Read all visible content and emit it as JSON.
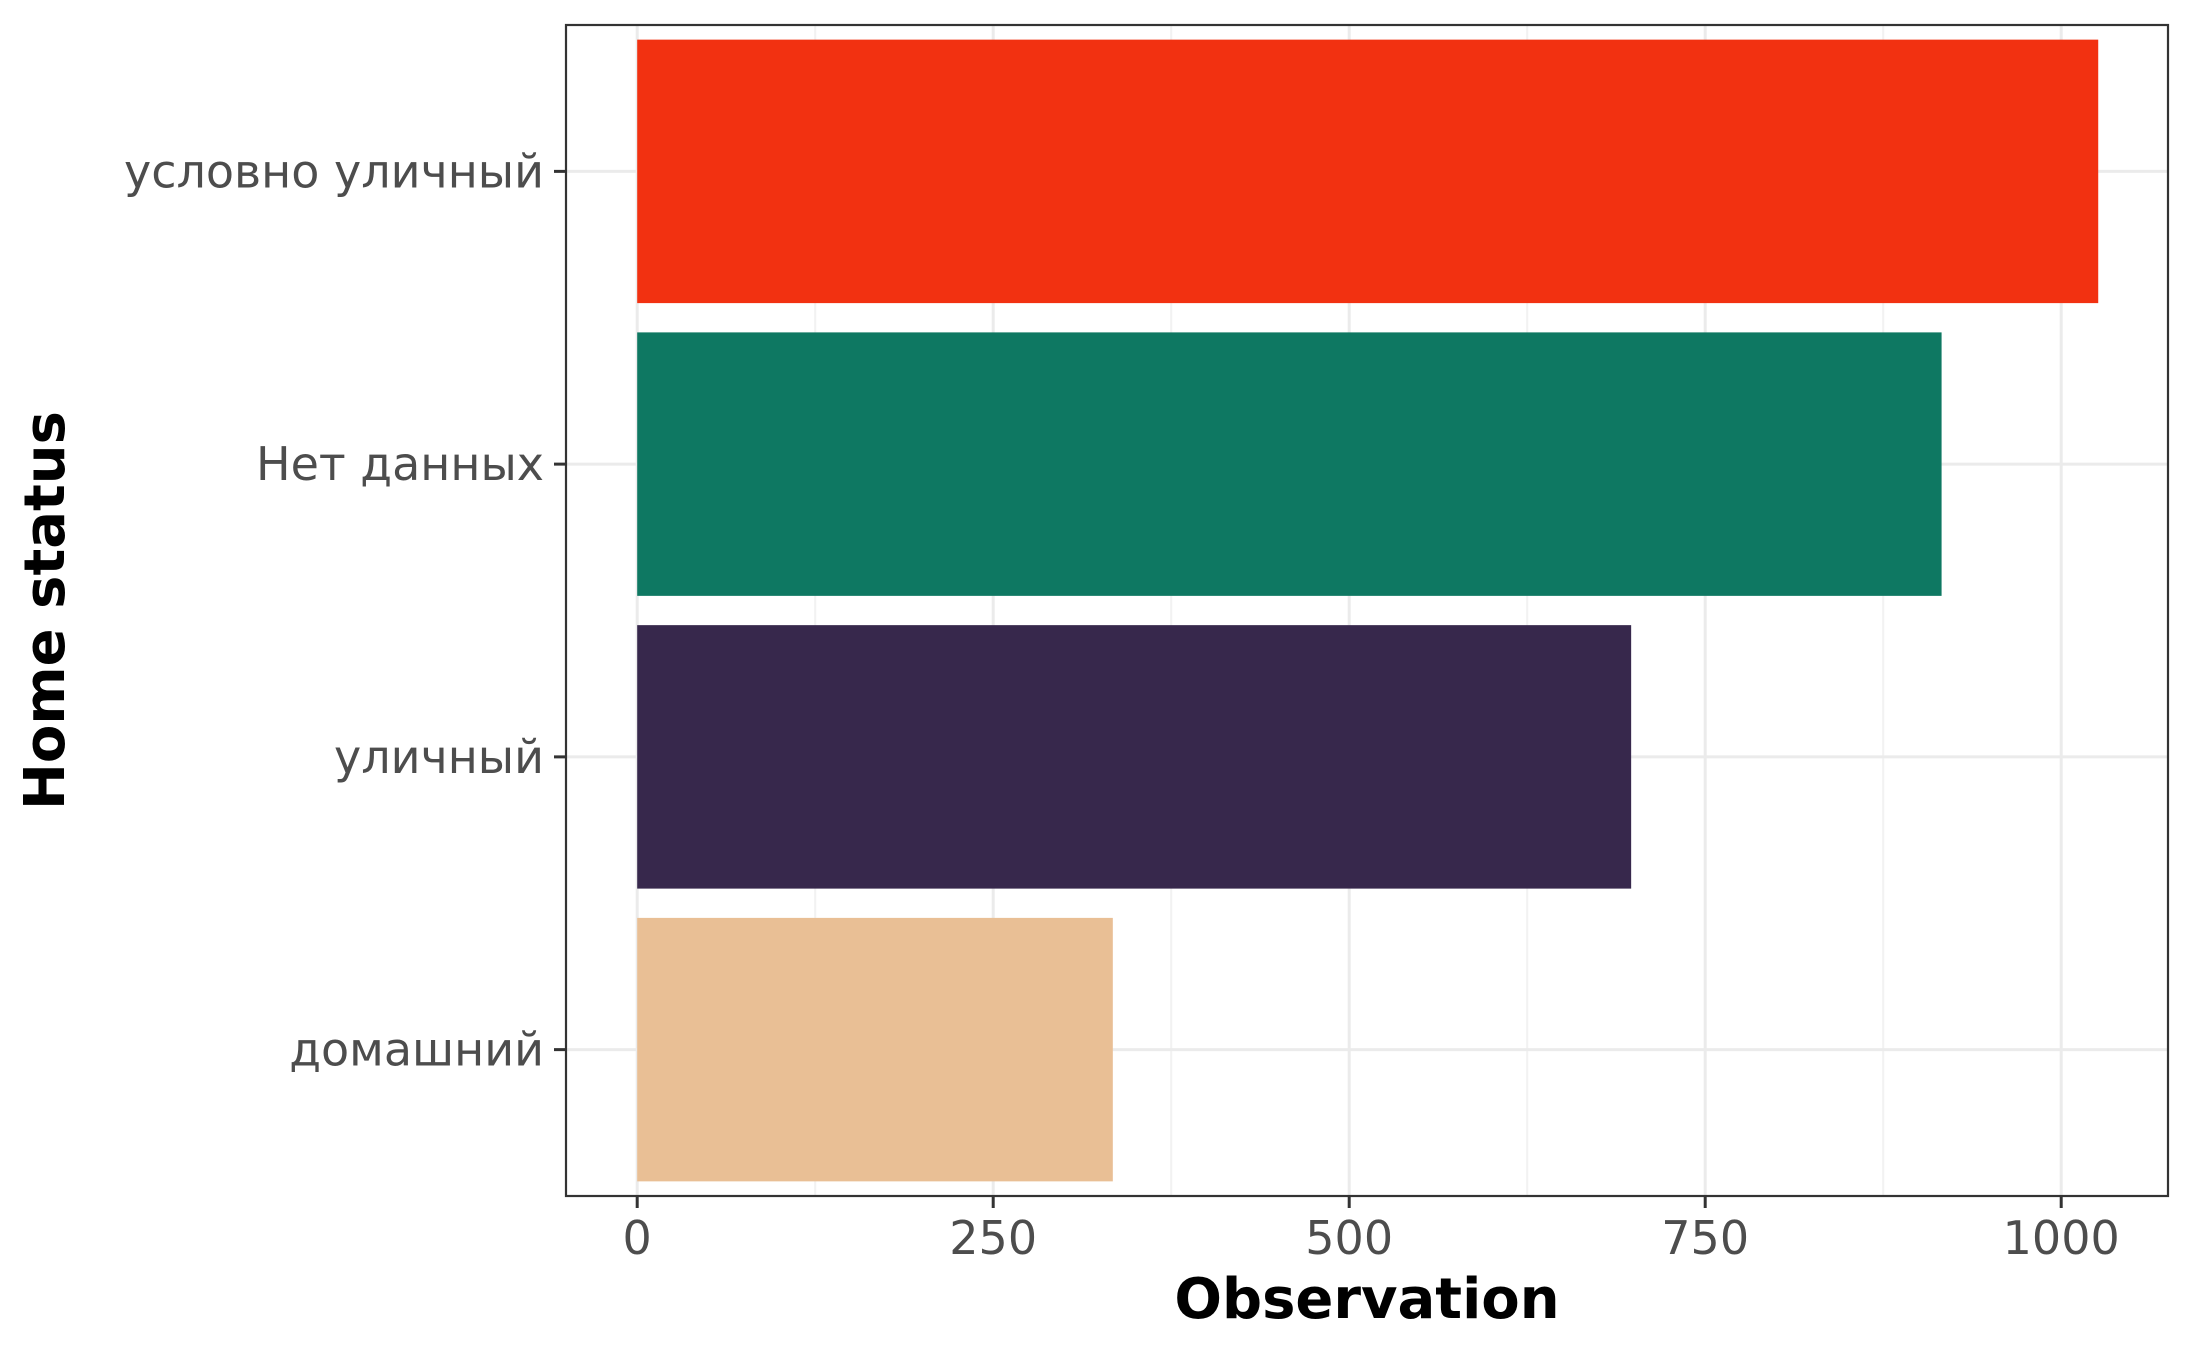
{
  "chart_data": {
    "type": "bar",
    "orientation": "horizontal",
    "categories": [
      "условно уличный",
      "Нет данных",
      "уличный",
      "домашний"
    ],
    "values": [
      1026,
      916,
      698,
      334
    ],
    "colors": [
      "#f23111",
      "#0e7862",
      "#37284c",
      "#e9bf95"
    ],
    "xlabel": "Observation",
    "ylabel": "Home status",
    "xlim": [
      -50,
      1075
    ],
    "xticks": [
      0,
      250,
      500,
      750,
      1000
    ],
    "xtick_labels": [
      "0",
      "250",
      "500",
      "750",
      "1000"
    ],
    "grid": true,
    "legend": "none"
  }
}
